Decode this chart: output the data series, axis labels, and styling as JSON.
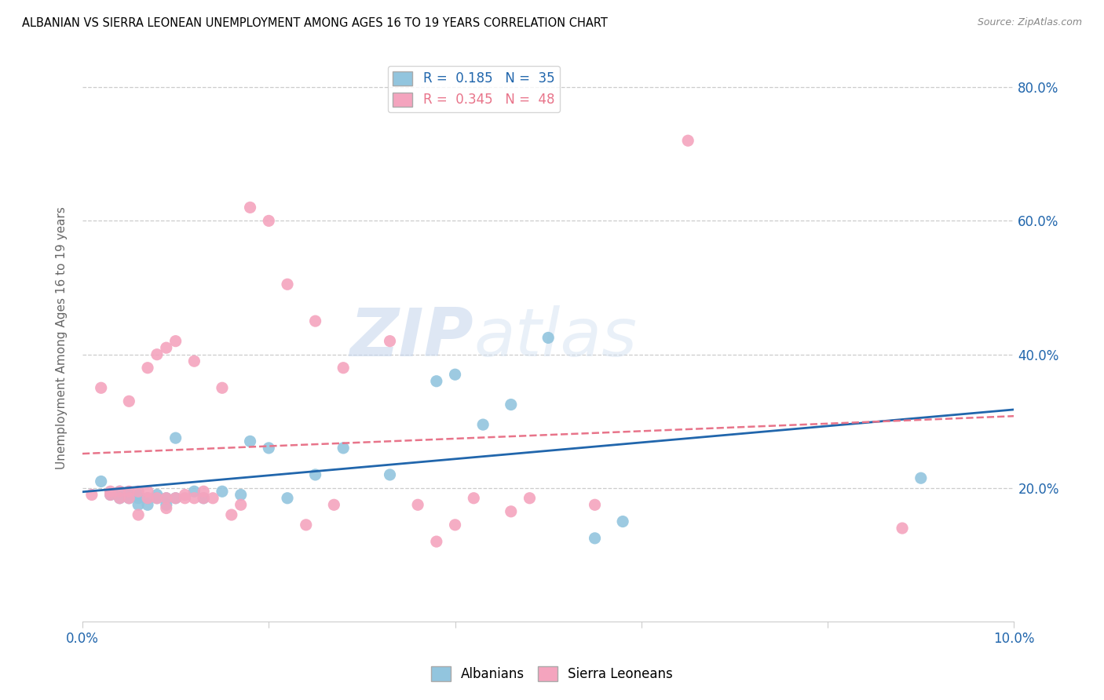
{
  "title": "ALBANIAN VS SIERRA LEONEAN UNEMPLOYMENT AMONG AGES 16 TO 19 YEARS CORRELATION CHART",
  "source": "Source: ZipAtlas.com",
  "ylabel": "Unemployment Among Ages 16 to 19 years",
  "xlim": [
    0.0,
    0.1
  ],
  "ylim": [
    0.0,
    0.85
  ],
  "x_ticks": [
    0.0,
    0.02,
    0.04,
    0.06,
    0.08,
    0.1
  ],
  "x_tick_labels": [
    "0.0%",
    "",
    "",
    "",
    "",
    "10.0%"
  ],
  "y_ticks_left": [
    0.2,
    0.4,
    0.6,
    0.8
  ],
  "y_tick_labels_right": [
    "20.0%",
    "40.0%",
    "60.0%",
    "80.0%"
  ],
  "albanian_color": "#92c5de",
  "sierra_leonean_color": "#f4a4be",
  "albanian_R": 0.185,
  "albanian_N": 35,
  "sierra_leonean_R": 0.345,
  "sierra_leonean_N": 48,
  "albanian_line_color": "#2166ac",
  "sierra_leonean_line_color": "#e8748a",
  "watermark_zip": "ZIP",
  "watermark_atlas": "atlas",
  "albanian_scatter_x": [
    0.002,
    0.003,
    0.004,
    0.004,
    0.005,
    0.005,
    0.006,
    0.006,
    0.006,
    0.007,
    0.007,
    0.008,
    0.008,
    0.009,
    0.009,
    0.01,
    0.01,
    0.012,
    0.013,
    0.015,
    0.017,
    0.018,
    0.02,
    0.022,
    0.025,
    0.028,
    0.033,
    0.038,
    0.04,
    0.043,
    0.046,
    0.05,
    0.055,
    0.058,
    0.09
  ],
  "albanian_scatter_y": [
    0.21,
    0.19,
    0.195,
    0.185,
    0.19,
    0.185,
    0.19,
    0.185,
    0.175,
    0.185,
    0.175,
    0.19,
    0.185,
    0.185,
    0.175,
    0.275,
    0.185,
    0.195,
    0.185,
    0.195,
    0.19,
    0.27,
    0.26,
    0.185,
    0.22,
    0.26,
    0.22,
    0.36,
    0.37,
    0.295,
    0.325,
    0.425,
    0.125,
    0.15,
    0.215
  ],
  "sierra_leonean_scatter_x": [
    0.001,
    0.002,
    0.003,
    0.003,
    0.004,
    0.004,
    0.005,
    0.005,
    0.005,
    0.006,
    0.006,
    0.007,
    0.007,
    0.007,
    0.008,
    0.008,
    0.009,
    0.009,
    0.009,
    0.01,
    0.01,
    0.011,
    0.011,
    0.012,
    0.012,
    0.013,
    0.013,
    0.014,
    0.015,
    0.016,
    0.017,
    0.018,
    0.02,
    0.022,
    0.024,
    0.025,
    0.027,
    0.028,
    0.033,
    0.036,
    0.038,
    0.04,
    0.042,
    0.046,
    0.048,
    0.055,
    0.065,
    0.088
  ],
  "sierra_leonean_scatter_y": [
    0.19,
    0.35,
    0.195,
    0.19,
    0.195,
    0.185,
    0.195,
    0.185,
    0.33,
    0.195,
    0.16,
    0.195,
    0.185,
    0.38,
    0.185,
    0.4,
    0.185,
    0.17,
    0.41,
    0.185,
    0.42,
    0.19,
    0.185,
    0.39,
    0.185,
    0.195,
    0.185,
    0.185,
    0.35,
    0.16,
    0.175,
    0.62,
    0.6,
    0.505,
    0.145,
    0.45,
    0.175,
    0.38,
    0.42,
    0.175,
    0.12,
    0.145,
    0.185,
    0.165,
    0.185,
    0.175,
    0.72,
    0.14
  ]
}
